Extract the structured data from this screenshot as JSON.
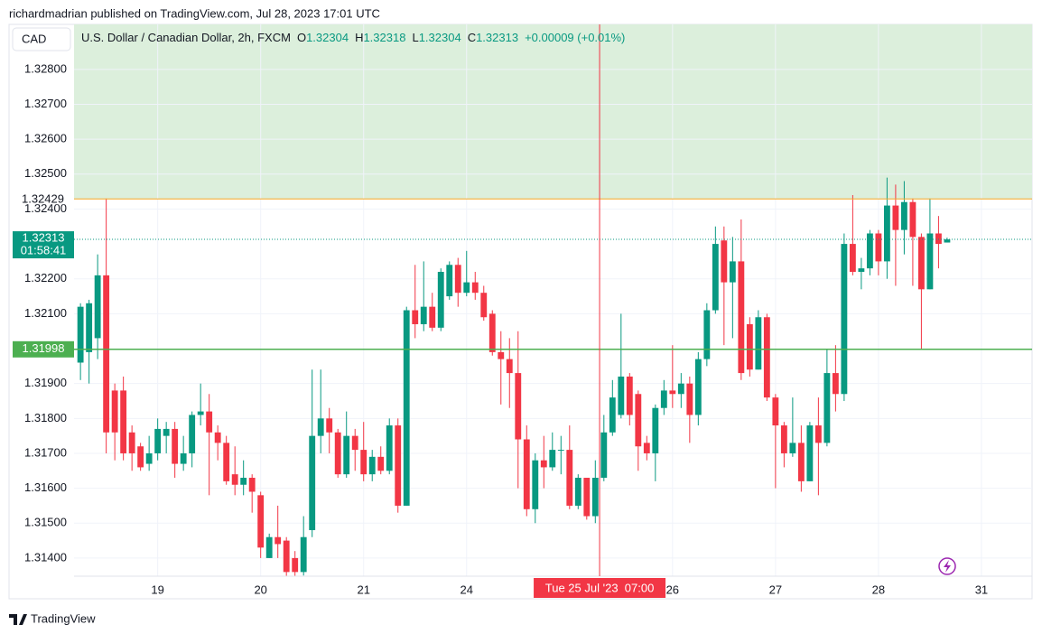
{
  "header": {
    "byline": "richardmadrian published on TradingView.com, Jul 28, 2023 17:01 UTC"
  },
  "footer": {
    "brand": "TradingView"
  },
  "chart_data": {
    "type": "candlestick",
    "currency": "CAD",
    "legend": {
      "symbol": "U.S. Dollar / Canadian Dollar, 2h, FXCM",
      "o": "O",
      "h": "H",
      "l": "L",
      "c": "C",
      "change": "+0.00009 (+0.01%)"
    },
    "up_color": "#089981",
    "down_color": "#f23645",
    "open": [
      1.3196,
      1.3199,
      1.3203,
      1.3221,
      1.3188,
      1.3188,
      1.3176,
      1.3172,
      1.3167,
      1.317,
      1.3175,
      1.3177,
      1.3167,
      1.317,
      1.3181,
      1.3182,
      1.3176,
      1.3173,
      1.3164,
      1.3161,
      1.3163,
      1.3158,
      1.314,
      1.3146,
      1.3145,
      1.314,
      1.3136,
      1.3148,
      1.3175,
      1.318,
      1.3176,
      1.3164,
      1.3175,
      1.3171,
      1.3164,
      1.3169,
      1.3165,
      1.3178,
      1.3155,
      1.3211,
      1.3207,
      1.3212,
      1.3206,
      1.3215,
      1.3224,
      1.3216,
      1.3219,
      1.3216,
      1.321,
      1.3199,
      1.3197,
      1.3193,
      1.3174,
      1.3154,
      1.3168,
      1.3166,
      1.3171,
      1.3171,
      1.3155,
      1.3163,
      1.3152,
      1.3163,
      1.3176,
      1.3181,
      1.3192,
      1.3187,
      1.3173,
      1.317,
      1.3183,
      1.3188,
      1.3187,
      1.319,
      1.3181,
      1.3197,
      1.3211,
      1.3231,
      1.3219,
      1.3225,
      1.3207,
      1.3194,
      1.3209,
      1.3186,
      1.3178,
      1.317,
      1.3173,
      1.3162,
      1.3178,
      1.3173,
      1.3193,
      1.3187,
      1.323,
      1.3222,
      1.3223,
      1.3233,
      1.3225,
      1.3241,
      1.3234,
      1.3242,
      1.3232,
      1.3217,
      1.3233,
      1.32304
    ],
    "high": [
      1.3213,
      1.3214,
      1.3227,
      1.3243,
      1.319,
      1.3192,
      1.3178,
      1.3173,
      1.3175,
      1.318,
      1.3179,
      1.3179,
      1.3175,
      1.3182,
      1.319,
      1.3187,
      1.3178,
      1.3175,
      1.3172,
      1.3168,
      1.3164,
      1.3159,
      1.3147,
      1.3155,
      1.3146,
      1.3142,
      1.3152,
      1.3194,
      1.3194,
      1.3183,
      1.3177,
      1.3182,
      1.3177,
      1.3179,
      1.3171,
      1.3172,
      1.318,
      1.318,
      1.3212,
      1.3224,
      1.3225,
      1.3216,
      1.3223,
      1.3225,
      1.3226,
      1.3228,
      1.3222,
      1.3218,
      1.3211,
      1.3205,
      1.3203,
      1.3205,
      1.3178,
      1.317,
      1.3175,
      1.3176,
      1.3175,
      1.3178,
      1.3164,
      1.3163,
      1.3168,
      1.3181,
      1.3191,
      1.321,
      1.3193,
      1.3188,
      1.3175,
      1.3184,
      1.3191,
      1.3201,
      1.3193,
      1.3192,
      1.3199,
      1.3213,
      1.3235,
      1.3235,
      1.3232,
      1.3237,
      1.3209,
      1.3211,
      1.321,
      1.3187,
      1.3179,
      1.3186,
      1.3178,
      1.3179,
      1.3186,
      1.32,
      1.3201,
      1.3233,
      1.3244,
      1.3226,
      1.3234,
      1.3234,
      1.3249,
      1.3247,
      1.3248,
      1.3243,
      1.3233,
      1.3243,
      1.3238,
      1.32318
    ],
    "low": [
      1.3191,
      1.319,
      1.3197,
      1.317,
      1.3168,
      1.3168,
      1.3165,
      1.3165,
      1.3165,
      1.3168,
      1.317,
      1.3163,
      1.3165,
      1.3166,
      1.3178,
      1.3158,
      1.3168,
      1.3161,
      1.3158,
      1.3158,
      1.3153,
      1.314,
      1.314,
      1.314,
      1.3134,
      1.3134,
      1.3135,
      1.3146,
      1.317,
      1.317,
      1.3163,
      1.3163,
      1.3165,
      1.3162,
      1.3162,
      1.3164,
      1.3164,
      1.3153,
      1.3155,
      1.3203,
      1.3205,
      1.3205,
      1.3205,
      1.3214,
      1.3212,
      1.3215,
      1.3214,
      1.3208,
      1.3198,
      1.3184,
      1.3183,
      1.316,
      1.3152,
      1.315,
      1.316,
      1.3165,
      1.3164,
      1.3154,
      1.3154,
      1.3151,
      1.315,
      1.3162,
      1.3175,
      1.318,
      1.3178,
      1.3165,
      1.3168,
      1.3162,
      1.3181,
      1.3183,
      1.3183,
      1.3173,
      1.3178,
      1.3195,
      1.321,
      1.3201,
      1.3203,
      1.3191,
      1.3192,
      1.3194,
      1.3185,
      1.316,
      1.3166,
      1.3169,
      1.3159,
      1.3162,
      1.3158,
      1.3172,
      1.3182,
      1.3185,
      1.3221,
      1.3217,
      1.3221,
      1.3221,
      1.322,
      1.3218,
      1.3227,
      1.3218,
      1.32,
      1.3217,
      1.3223,
      1.32304
    ],
    "close": [
      1.3212,
      1.3213,
      1.3221,
      1.3176,
      1.3176,
      1.317,
      1.317,
      1.3166,
      1.317,
      1.3177,
      1.3177,
      1.3167,
      1.317,
      1.3181,
      1.3182,
      1.3176,
      1.3173,
      1.3162,
      1.3161,
      1.3163,
      1.3159,
      1.3143,
      1.3146,
      1.3144,
      1.3136,
      1.3136,
      1.3146,
      1.3175,
      1.318,
      1.3176,
      1.3164,
      1.3175,
      1.3171,
      1.3164,
      1.3169,
      1.3165,
      1.3178,
      1.3155,
      1.3211,
      1.3207,
      1.3212,
      1.3206,
      1.3222,
      1.3224,
      1.3216,
      1.3219,
      1.3216,
      1.3209,
      1.3199,
      1.3197,
      1.3193,
      1.3174,
      1.3154,
      1.3168,
      1.3166,
      1.3171,
      1.3171,
      1.3155,
      1.3163,
      1.3152,
      1.3163,
      1.3176,
      1.3186,
      1.3192,
      1.3181,
      1.3172,
      1.317,
      1.3183,
      1.3188,
      1.3187,
      1.319,
      1.3181,
      1.3197,
      1.3211,
      1.323,
      1.3219,
      1.3225,
      1.3193,
      1.3194,
      1.3209,
      1.3186,
      1.3178,
      1.317,
      1.3173,
      1.3162,
      1.3178,
      1.3173,
      1.3193,
      1.3187,
      1.323,
      1.3222,
      1.3223,
      1.3233,
      1.3225,
      1.3241,
      1.3234,
      1.3242,
      1.3232,
      1.3217,
      1.3233,
      1.323,
      1.32313
    ],
    "countdown": "01:58:41",
    "ylim": [
      1.31348,
      1.32929
    ],
    "yticks": [
      {
        "value": 1.328,
        "label": "1.32800"
      },
      {
        "value": 1.327,
        "label": "1.32700"
      },
      {
        "value": 1.326,
        "label": "1.32600"
      },
      {
        "value": 1.325,
        "label": "1.32500"
      },
      {
        "value": 1.324,
        "label": "1.32400"
      },
      {
        "value": 1.322,
        "label": "1.32200"
      },
      {
        "value": 1.321,
        "label": "1.32100"
      },
      {
        "value": 1.319,
        "label": "1.31900"
      },
      {
        "value": 1.318,
        "label": "1.31800"
      },
      {
        "value": 1.317,
        "label": "1.31700"
      },
      {
        "value": 1.316,
        "label": "1.31600"
      },
      {
        "value": 1.315,
        "label": "1.31500"
      },
      {
        "value": 1.314,
        "label": "1.31400"
      }
    ],
    "xlim": [
      -0.75,
      110.9
    ],
    "xticks": [
      {
        "value": 9,
        "label": "19"
      },
      {
        "value": 21,
        "label": "20"
      },
      {
        "value": 33,
        "label": "21"
      },
      {
        "value": 45,
        "label": "24"
      },
      {
        "value": 69,
        "label": "26"
      },
      {
        "value": 81,
        "label": "27"
      },
      {
        "value": 93,
        "label": "28"
      },
      {
        "value": 105,
        "label": "31"
      }
    ],
    "levels": [
      {
        "value": 1.32429,
        "color": "#f5a623",
        "zone": "#dcefdc"
      },
      {
        "value": 1.31998,
        "color": "#4caf50"
      }
    ],
    "crosshair": {
      "x": 60.5,
      "label": "Tue 25 Jul '23  07:00",
      "color": "#f23645"
    },
    "grid": true
  }
}
